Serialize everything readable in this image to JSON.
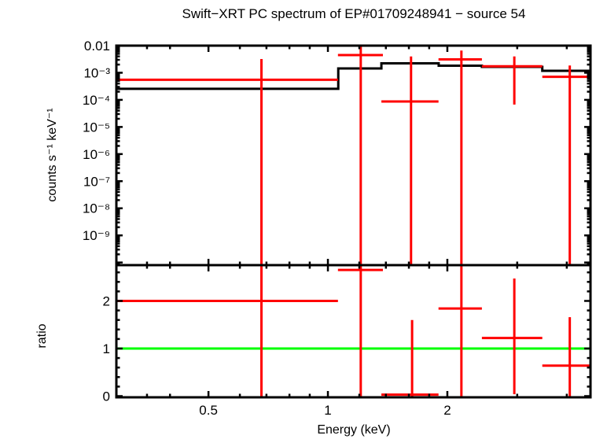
{
  "chart_data": {
    "type": "scatter",
    "title": "Swift−XRT PC spectrum of EP#01709248941 − source 54",
    "xlabel": "Energy (keV)",
    "xscale": "log",
    "xlim": [
      0.293,
      4.59
    ],
    "x_major_ticks": [
      0.5,
      1,
      2
    ],
    "x_major_labels": [
      "0.5",
      "1",
      "2"
    ],
    "x_minor_ticks": [
      0.35,
      0.4,
      0.6,
      0.7,
      0.8,
      0.9,
      1.2,
      1.4,
      1.6,
      1.8,
      3,
      4
    ],
    "legend": "none",
    "grid": false,
    "colors": {
      "data": "#ff0000",
      "model": "#000000",
      "unity": "#00ff00",
      "frame": "#000000",
      "background": "#ffffff"
    },
    "panels": [
      {
        "name": "spectrum",
        "ylabel": "counts s⁻¹ keV⁻¹",
        "yscale": "log",
        "ylim": [
          8e-11,
          0.01
        ],
        "y_major_ticks": [
          0.01,
          0.001,
          0.0001,
          1e-05,
          1e-06,
          1e-07,
          1e-08,
          1e-09,
          1e-10
        ],
        "y_tick_labels": [
          "0.01",
          "10⁻³",
          "10⁻⁴",
          "10⁻⁵",
          "10⁻⁶",
          "10⁻⁷",
          "10⁻⁸",
          "10⁻⁹",
          ""
        ],
        "points": [
          {
            "xlo": 0.293,
            "x": 0.68,
            "xhi": 1.06,
            "y": 0.00055,
            "yhi": 0.0032,
            "ylo": null
          },
          {
            "xlo": 1.06,
            "x": 1.21,
            "xhi": 1.376,
            "y": 0.0045,
            "yhi": null,
            "ylo": null
          },
          {
            "xlo": 1.364,
            "x": 1.62,
            "xhi": 1.9,
            "y": 8.7e-05,
            "yhi": 0.004,
            "ylo": null
          },
          {
            "xlo": 1.9,
            "x": 2.17,
            "xhi": 2.444,
            "y": 0.0031,
            "yhi": 0.0066,
            "ylo": null
          },
          {
            "xlo": 2.444,
            "x": 2.95,
            "xhi": 3.47,
            "y": 0.00173,
            "yhi": 0.004,
            "ylo": 6.7e-05
          },
          {
            "xlo": 3.47,
            "x": 4.07,
            "xhi": 4.59,
            "y": 0.00071,
            "yhi": 0.00185,
            "ylo": null
          }
        ],
        "model_steps": [
          {
            "xlo": 0.293,
            "xhi": 1.062,
            "y": 0.000255
          },
          {
            "xlo": 1.062,
            "xhi": 1.364,
            "y": 0.00144
          },
          {
            "xlo": 1.364,
            "xhi": 1.902,
            "y": 0.00223
          },
          {
            "xlo": 1.902,
            "xhi": 2.444,
            "y": 0.00182
          },
          {
            "xlo": 2.444,
            "xhi": 3.47,
            "y": 0.00165
          },
          {
            "xlo": 3.47,
            "xhi": 4.59,
            "y": 0.00118
          }
        ]
      },
      {
        "name": "ratio",
        "ylabel": "ratio",
        "yscale": "linear",
        "ylim": [
          -0.025,
          2.752
        ],
        "y_major_ticks": [
          0,
          1,
          2
        ],
        "y_tick_labels": [
          "0",
          "1",
          "2"
        ],
        "y_minor_ticks": [
          0.2,
          0.4,
          0.6,
          0.8,
          1.2,
          1.4,
          1.6,
          1.8,
          2.2,
          2.4,
          2.6
        ],
        "unity_line": 1,
        "points": [
          {
            "xlo": 0.293,
            "x": 0.68,
            "xhi": 1.06,
            "y": 2.0,
            "yhi": null,
            "ylo": null
          },
          {
            "xlo": 1.06,
            "x": 1.21,
            "xhi": 1.376,
            "y": 2.65,
            "yhi": null,
            "ylo": null
          },
          {
            "xlo": 1.364,
            "x": 1.63,
            "xhi": 1.9,
            "y": 0.03,
            "yhi": 1.6,
            "ylo": null
          },
          {
            "xlo": 1.9,
            "x": 2.17,
            "xhi": 2.444,
            "y": 1.84,
            "yhi": null,
            "ylo": null
          },
          {
            "xlo": 2.444,
            "x": 2.95,
            "xhi": 3.47,
            "y": 1.22,
            "yhi": 2.47,
            "ylo": 0.04
          },
          {
            "xlo": 3.47,
            "x": 4.07,
            "xhi": 4.59,
            "y": 0.64,
            "yhi": 1.66,
            "ylo": null
          }
        ]
      }
    ]
  }
}
